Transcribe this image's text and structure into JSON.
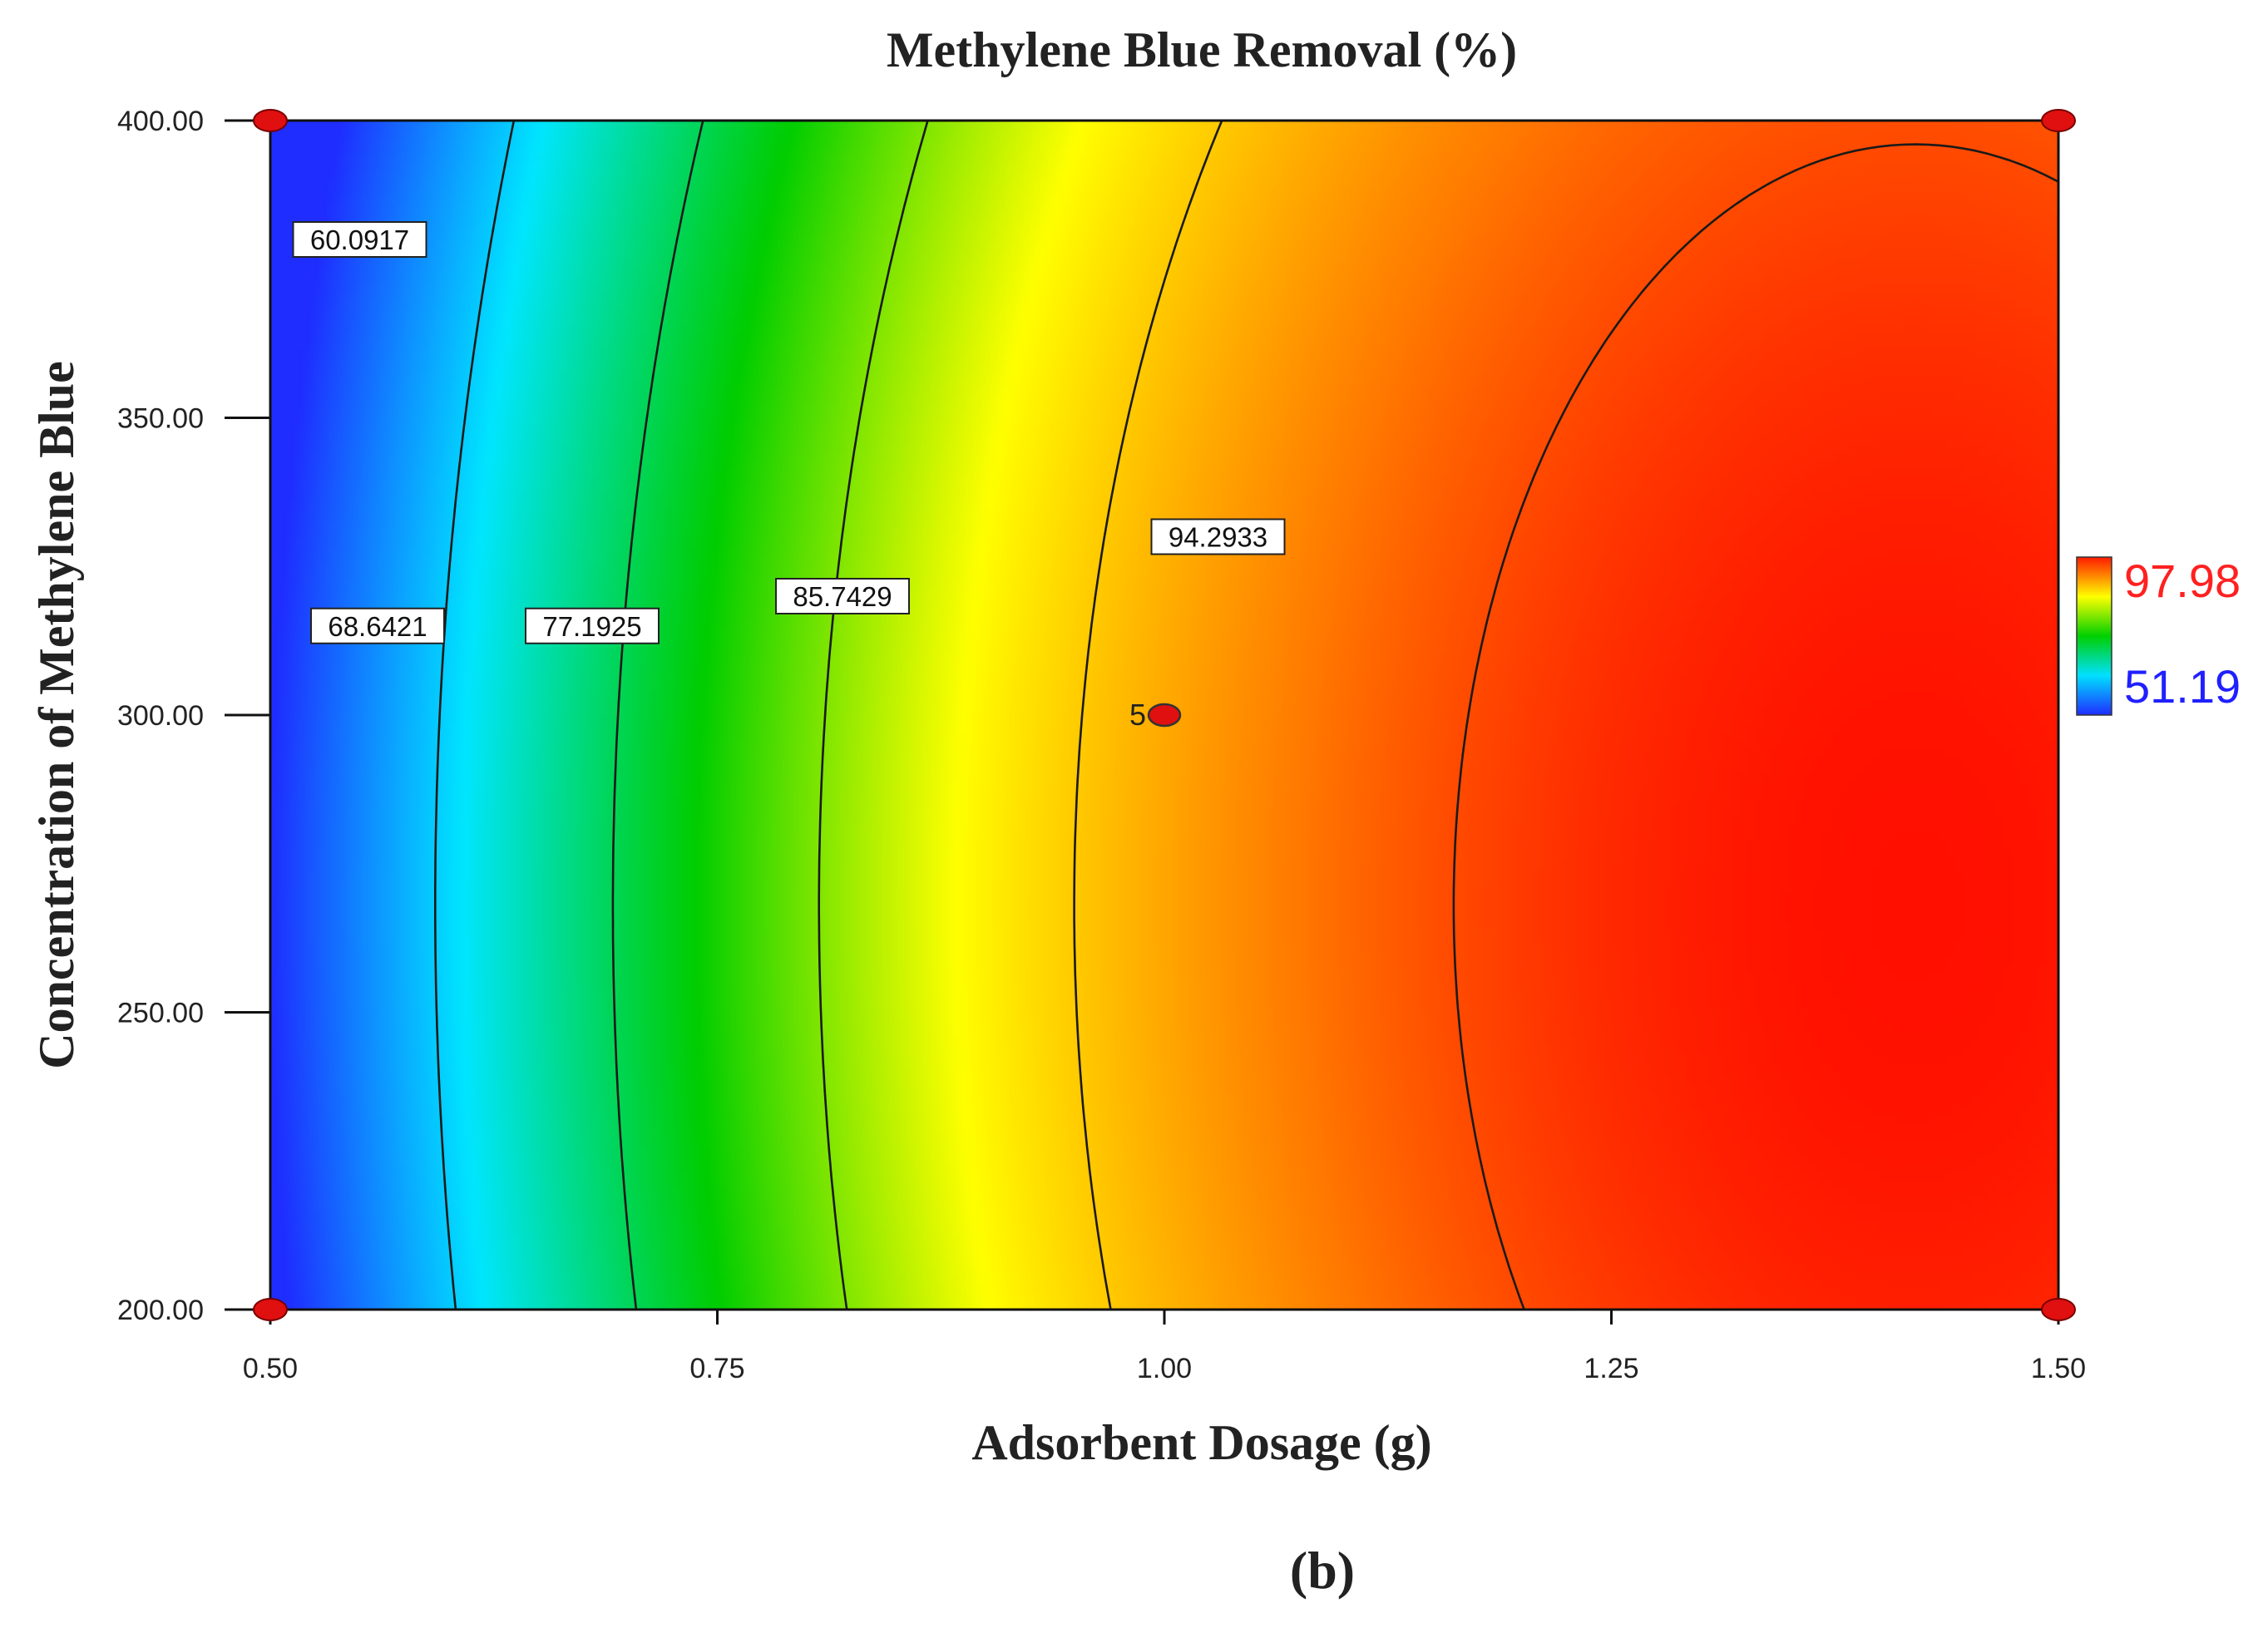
{
  "chart_data": {
    "type": "heatmap",
    "subtype": "contour",
    "title": "Methylene Blue Removal (%)",
    "xlabel": "Adsorbent Dosage (g)",
    "ylabel": "Concentration of Methylene Blue",
    "xlim": [
      0.5,
      1.5
    ],
    "ylim": [
      200,
      400
    ],
    "x_ticks": [
      "0.50",
      "0.75",
      "1.00",
      "1.25",
      "1.50"
    ],
    "y_ticks": [
      "200.00",
      "250.00",
      "300.00",
      "350.00",
      "400.00"
    ],
    "color_scale": {
      "min": 51.19,
      "max": 97.98,
      "min_label": "51.19",
      "max_label": "97.98",
      "min_color": "#2020ff",
      "max_color": "#ff2020"
    },
    "contours": [
      {
        "label": "60.0917",
        "value": 60.0917,
        "label_at": {
          "x": 0.55,
          "y": 380
        }
      },
      {
        "label": "68.6421",
        "value": 68.6421,
        "label_at": {
          "x": 0.56,
          "y": 315
        }
      },
      {
        "label": "77.1925",
        "value": 77.1925,
        "label_at": {
          "x": 0.68,
          "y": 315
        }
      },
      {
        "label": "85.7429",
        "value": 85.7429,
        "label_at": {
          "x": 0.82,
          "y": 320
        }
      },
      {
        "label": "94.2933",
        "value": 94.2933,
        "label_at": {
          "x": 1.03,
          "y": 330
        }
      }
    ],
    "center_point": {
      "x": 1.0,
      "y": 300,
      "label": "5"
    },
    "design_points": [
      {
        "x": 0.5,
        "y": 200
      },
      {
        "x": 0.5,
        "y": 400
      },
      {
        "x": 1.5,
        "y": 200
      },
      {
        "x": 1.5,
        "y": 400
      }
    ]
  },
  "caption": "(b)"
}
